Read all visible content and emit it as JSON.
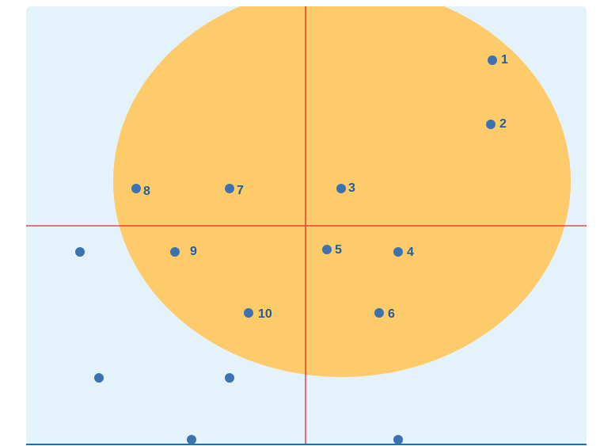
{
  "diagram": {
    "background_color": "#e4f3fb",
    "ellipse_color": "#fdcb69",
    "axis_color": "#e5282e",
    "point_color": "#3d71b0",
    "label_color": "#1f5f9a",
    "baseline_color": "#2b6a9e"
  },
  "labeled_points": [
    {
      "label": "1"
    },
    {
      "label": "2"
    },
    {
      "label": "3"
    },
    {
      "label": "4"
    },
    {
      "label": "5"
    },
    {
      "label": "6"
    },
    {
      "label": "7"
    },
    {
      "label": "8"
    },
    {
      "label": "9"
    },
    {
      "label": "10"
    }
  ]
}
